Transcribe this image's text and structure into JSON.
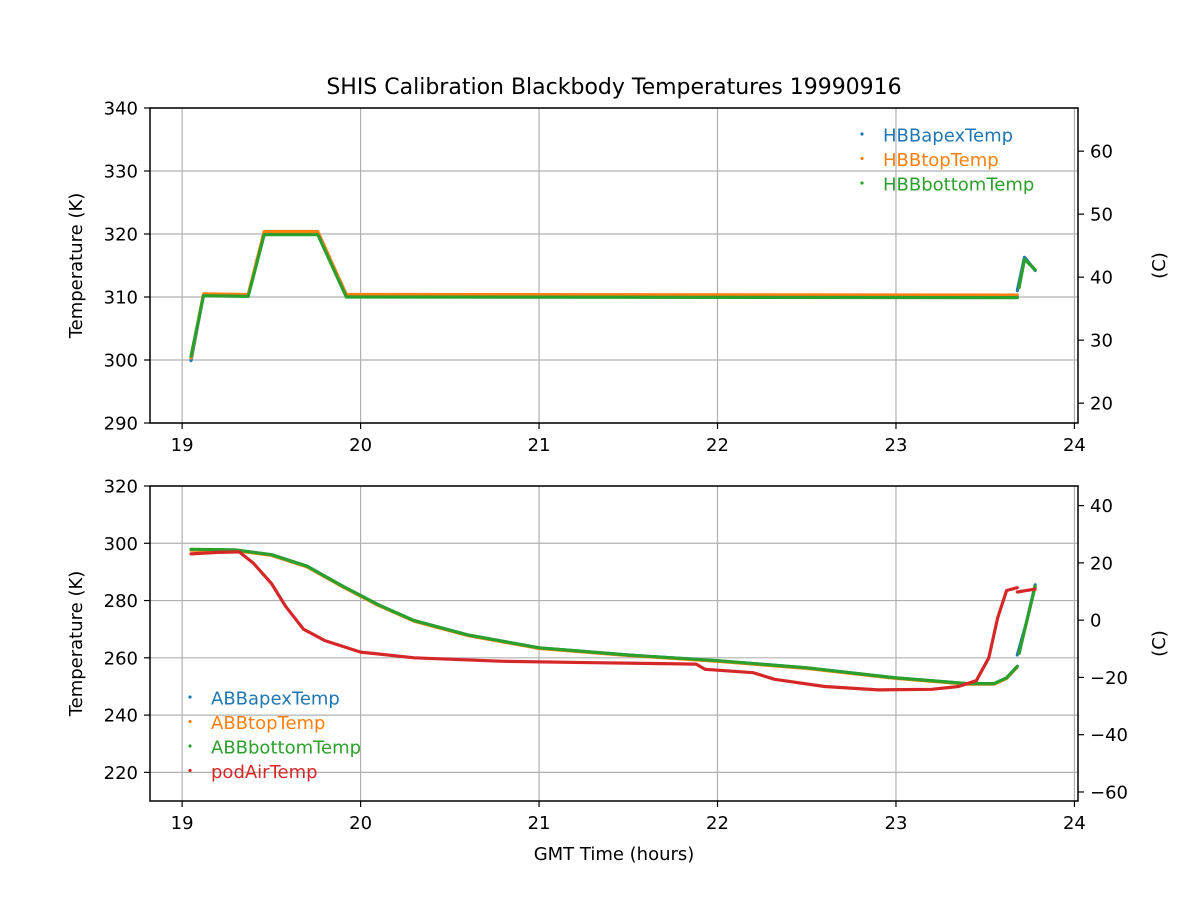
{
  "chart_data": [
    {
      "type": "scatter",
      "title": "SHIS Calibration Blackbody Temperatures 19990916",
      "xlabel": "",
      "ylabel": "Temperature (K)",
      "ylabel_right": "(C)",
      "xlim": [
        18.82,
        24.02
      ],
      "ylim": [
        290,
        340
      ],
      "xticks": [
        19,
        20,
        21,
        22,
        23,
        24
      ],
      "yticks": [
        290,
        300,
        310,
        320,
        330,
        340
      ],
      "yticks_right": [
        20,
        30,
        40,
        50,
        60
      ],
      "grid": true,
      "legend_position": "top-right",
      "series": [
        {
          "name": "HBBapexTemp",
          "color": "#1f77b4",
          "segments": [
            [
              [
                19.05,
                299.9
              ],
              [
                19.12,
                310.3
              ],
              [
                19.37,
                310.2
              ],
              [
                19.46,
                320.0
              ],
              [
                19.76,
                320.0
              ],
              [
                19.92,
                310.1
              ],
              [
                23.68,
                310.0
              ]
            ],
            [
              [
                23.68,
                311.0
              ],
              [
                23.72,
                316.3
              ],
              [
                23.78,
                314.2
              ]
            ]
          ]
        },
        {
          "name": "HBBtopTemp",
          "color": "#ff7f0e",
          "segments": [
            [
              [
                19.05,
                300.3
              ],
              [
                19.12,
                310.5
              ],
              [
                19.37,
                310.4
              ],
              [
                19.46,
                320.4
              ],
              [
                19.76,
                320.4
              ],
              [
                19.92,
                310.4
              ],
              [
                23.68,
                310.3
              ]
            ]
          ]
        },
        {
          "name": "HBBbottomTemp",
          "color": "#2ca02c",
          "segments": [
            [
              [
                19.05,
                300.6
              ],
              [
                19.12,
                310.2
              ],
              [
                19.37,
                310.1
              ],
              [
                19.46,
                319.9
              ],
              [
                19.76,
                319.9
              ],
              [
                19.92,
                310.0
              ],
              [
                23.68,
                309.9
              ]
            ],
            [
              [
                23.69,
                311.5
              ],
              [
                23.72,
                316.0
              ],
              [
                23.78,
                314.3
              ]
            ]
          ]
        }
      ]
    },
    {
      "type": "scatter",
      "title": "",
      "xlabel": "GMT Time (hours)",
      "ylabel": "Temperature (K)",
      "ylabel_right": "(C)",
      "xlim": [
        18.82,
        24.02
      ],
      "ylim": [
        210,
        320
      ],
      "xticks": [
        19,
        20,
        21,
        22,
        23,
        24
      ],
      "yticks": [
        220,
        240,
        260,
        280,
        300,
        320
      ],
      "yticks_right": [
        -60,
        -40,
        -20,
        0,
        20,
        40
      ],
      "grid": true,
      "legend_position": "bottom-left",
      "series": [
        {
          "name": "ABBapexTemp",
          "color": "#1f77b4",
          "segments": [
            [
              [
                19.05,
                297.8
              ],
              [
                19.3,
                297.6
              ],
              [
                19.5,
                296.0
              ],
              [
                19.7,
                292.0
              ],
              [
                19.9,
                285.0
              ],
              [
                20.1,
                278.5
              ],
              [
                20.3,
                273.0
              ],
              [
                20.6,
                268.0
              ],
              [
                21.0,
                263.5
              ],
              [
                21.5,
                261.0
              ],
              [
                22.0,
                259.0
              ],
              [
                22.5,
                256.5
              ],
              [
                23.0,
                253.0
              ],
              [
                23.4,
                251.0
              ],
              [
                23.55,
                251.0
              ],
              [
                23.62,
                253.0
              ],
              [
                23.68,
                257.0
              ]
            ],
            [
              [
                23.68,
                261.0
              ],
              [
                23.73,
                272.0
              ],
              [
                23.78,
                285.5
              ]
            ]
          ]
        },
        {
          "name": "ABBtopTemp",
          "color": "#ff7f0e",
          "segments": [
            [
              [
                19.05,
                297.6
              ],
              [
                19.3,
                297.4
              ],
              [
                19.5,
                295.8
              ],
              [
                19.7,
                291.8
              ],
              [
                19.9,
                284.8
              ],
              [
                20.1,
                278.3
              ],
              [
                20.3,
                272.8
              ],
              [
                20.6,
                267.8
              ],
              [
                21.0,
                263.3
              ],
              [
                21.5,
                260.8
              ],
              [
                22.0,
                258.8
              ],
              [
                22.5,
                256.3
              ],
              [
                23.0,
                252.8
              ],
              [
                23.4,
                250.8
              ],
              [
                23.55,
                250.8
              ],
              [
                23.62,
                252.8
              ],
              [
                23.68,
                256.8
              ]
            ]
          ]
        },
        {
          "name": "ABBbottomTemp",
          "color": "#2ca02c",
          "segments": [
            [
              [
                19.05,
                297.9
              ],
              [
                19.3,
                297.7
              ],
              [
                19.5,
                296.0
              ],
              [
                19.7,
                292.0
              ],
              [
                19.9,
                285.0
              ],
              [
                20.1,
                278.5
              ],
              [
                20.3,
                273.0
              ],
              [
                20.6,
                268.0
              ],
              [
                21.0,
                263.5
              ],
              [
                21.5,
                261.0
              ],
              [
                22.0,
                259.0
              ],
              [
                22.5,
                256.5
              ],
              [
                23.0,
                253.0
              ],
              [
                23.4,
                251.0
              ],
              [
                23.55,
                251.0
              ],
              [
                23.62,
                253.0
              ],
              [
                23.68,
                257.0
              ]
            ],
            [
              [
                23.69,
                261.5
              ],
              [
                23.73,
                272.0
              ],
              [
                23.78,
                285.0
              ]
            ]
          ]
        },
        {
          "name": "podAirTemp",
          "color": "#d62728",
          "segments": [
            [
              [
                19.05,
                296.3
              ],
              [
                19.2,
                296.8
              ],
              [
                19.32,
                297.0
              ],
              [
                19.4,
                293.0
              ],
              [
                19.5,
                286.0
              ],
              [
                19.58,
                278.0
              ],
              [
                19.68,
                270.0
              ],
              [
                19.8,
                266.0
              ],
              [
                20.0,
                262.0
              ],
              [
                20.3,
                260.0
              ],
              [
                20.8,
                258.8
              ],
              [
                21.3,
                258.3
              ],
              [
                21.88,
                257.8
              ],
              [
                21.93,
                256.0
              ],
              [
                22.2,
                254.8
              ],
              [
                22.32,
                252.5
              ],
              [
                22.6,
                250.0
              ],
              [
                22.9,
                248.8
              ],
              [
                23.2,
                249.0
              ],
              [
                23.35,
                250.0
              ],
              [
                23.45,
                252.0
              ],
              [
                23.52,
                260.0
              ],
              [
                23.57,
                274.0
              ],
              [
                23.62,
                283.5
              ],
              [
                23.68,
                284.5
              ]
            ],
            [
              [
                23.68,
                283.0
              ],
              [
                23.78,
                284.0
              ]
            ]
          ]
        }
      ]
    }
  ]
}
